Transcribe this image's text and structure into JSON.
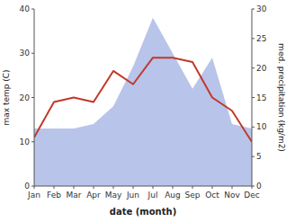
{
  "chart_data": {
    "type": "line",
    "x_label": "date (month)",
    "y_label": "max temp (C)",
    "y2_label": "med. precipitation (kg/m2)",
    "categories": [
      "Jan",
      "Feb",
      "Mar",
      "Apr",
      "May",
      "Jun",
      "Jul",
      "Aug",
      "Sep",
      "Oct",
      "Nov",
      "Dec"
    ],
    "series": [
      {
        "type": "area",
        "color": "#b8c4ea",
        "values": [
          13,
          13,
          13,
          14,
          18,
          27,
          38,
          30,
          22,
          29,
          14,
          13
        ]
      },
      {
        "type": "line",
        "color": "#c0392b",
        "values": [
          11,
          19,
          20,
          19,
          26,
          23,
          29,
          29,
          28,
          20,
          17,
          10
        ]
      }
    ],
    "ylim": [
      0,
      40
    ],
    "yticks": [
      0,
      10,
      20,
      30,
      40
    ],
    "y2lim": [
      0,
      30
    ],
    "y2ticks": [
      0,
      5,
      10,
      15,
      20,
      25,
      30
    ],
    "grid": false
  }
}
